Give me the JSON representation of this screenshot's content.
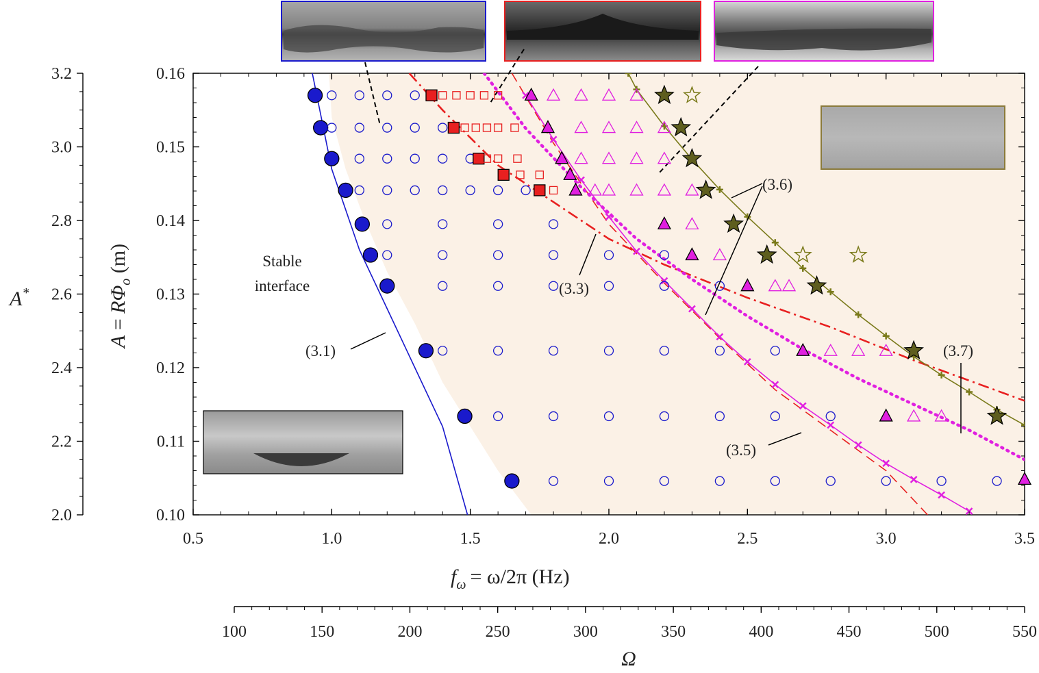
{
  "chart_data": {
    "type": "scatter",
    "title": "",
    "xlabel": "f_ω = ω/2π (Hz)",
    "xlabel_parts": {
      "symbol": "f",
      "sub": "ω",
      "rest": "= ω/2π  (Hz)"
    },
    "ylabel": "A = RΦo (m)",
    "ylabel_parts": {
      "lhs": "A",
      "eq": " = ",
      "R": "R",
      "Phi": "Φ",
      "sub": "o",
      "unit": " (m)"
    },
    "left_axis_label": "A*",
    "left_axis_label_parts": {
      "main": "A",
      "sup": "*"
    },
    "bottom_axis_label": "Ω",
    "xlim": [
      0.5,
      3.5
    ],
    "ylim": [
      0.1,
      0.16
    ],
    "x_ticks": [
      "0.5",
      "1.0",
      "1.5",
      "2.0",
      "2.5",
      "3.0",
      "3.5"
    ],
    "y_ticks": [
      "0.10",
      "0.11",
      "0.12",
      "0.13",
      "0.14",
      "0.15",
      "0.16"
    ],
    "left_axis_range": [
      2.0,
      3.2
    ],
    "left_axis_ticks": [
      "2.0",
      "2.2",
      "2.4",
      "2.6",
      "2.8",
      "3.0",
      "3.2"
    ],
    "bottom_axis_range": [
      100,
      550
    ],
    "bottom_axis_ticks": [
      "100",
      "150",
      "200",
      "250",
      "300",
      "350",
      "400",
      "450",
      "500",
      "550"
    ],
    "annotations": {
      "stable_line1": "Stable",
      "stable_line2": "interface",
      "eq31": "(3.1)",
      "eq33": "(3.3)",
      "eq35": "(3.5)",
      "eq36": "(3.6)",
      "eq37": "(3.7)"
    },
    "colors": {
      "blue": "#1a1acc",
      "red": "#e82020",
      "magenta": "#e020e0",
      "olive": "#7a7a1a",
      "olive_fill": "#5e5e1e",
      "region": "#fbf1e6"
    },
    "series": [
      {
        "marker": "circle-filled",
        "color": "#1a1acc",
        "points": [
          [
            0.94,
            0.157
          ],
          [
            0.96,
            0.1526
          ],
          [
            1.0,
            0.1484
          ],
          [
            1.05,
            0.1441
          ],
          [
            1.11,
            0.1395
          ],
          [
            1.14,
            0.1353
          ],
          [
            1.2,
            0.1311
          ],
          [
            1.34,
            0.1223
          ],
          [
            1.48,
            0.1134
          ],
          [
            1.65,
            0.1046
          ]
        ]
      },
      {
        "marker": "circle-open",
        "color": "#1a1acc",
        "points": [
          [
            1.0,
            0.157
          ],
          [
            1.1,
            0.157
          ],
          [
            1.2,
            0.157
          ],
          [
            1.3,
            0.157
          ],
          [
            1.0,
            0.1526
          ],
          [
            1.1,
            0.1526
          ],
          [
            1.2,
            0.1526
          ],
          [
            1.3,
            0.1526
          ],
          [
            1.4,
            0.1526
          ],
          [
            1.1,
            0.1484
          ],
          [
            1.2,
            0.1484
          ],
          [
            1.3,
            0.1484
          ],
          [
            1.4,
            0.1484
          ],
          [
            1.5,
            0.1484
          ],
          [
            1.1,
            0.1441
          ],
          [
            1.2,
            0.1441
          ],
          [
            1.3,
            0.1441
          ],
          [
            1.4,
            0.1441
          ],
          [
            1.5,
            0.1441
          ],
          [
            1.6,
            0.1441
          ],
          [
            1.7,
            0.1441
          ],
          [
            1.2,
            0.1395
          ],
          [
            1.4,
            0.1395
          ],
          [
            1.6,
            0.1395
          ],
          [
            1.8,
            0.1395
          ],
          [
            1.2,
            0.1353
          ],
          [
            1.4,
            0.1353
          ],
          [
            1.6,
            0.1353
          ],
          [
            1.8,
            0.1353
          ],
          [
            2.0,
            0.1353
          ],
          [
            2.2,
            0.1353
          ],
          [
            1.4,
            0.1311
          ],
          [
            1.6,
            0.1311
          ],
          [
            1.8,
            0.1311
          ],
          [
            2.0,
            0.1311
          ],
          [
            2.2,
            0.1311
          ],
          [
            2.4,
            0.1311
          ],
          [
            1.4,
            0.1223
          ],
          [
            1.6,
            0.1223
          ],
          [
            1.8,
            0.1223
          ],
          [
            2.0,
            0.1223
          ],
          [
            2.2,
            0.1223
          ],
          [
            2.4,
            0.1223
          ],
          [
            2.6,
            0.1223
          ],
          [
            1.6,
            0.1134
          ],
          [
            1.8,
            0.1134
          ],
          [
            2.0,
            0.1134
          ],
          [
            2.2,
            0.1134
          ],
          [
            2.4,
            0.1134
          ],
          [
            2.6,
            0.1134
          ],
          [
            2.8,
            0.1134
          ],
          [
            1.8,
            0.1046
          ],
          [
            2.0,
            0.1046
          ],
          [
            2.2,
            0.1046
          ],
          [
            2.4,
            0.1046
          ],
          [
            2.6,
            0.1046
          ],
          [
            2.8,
            0.1046
          ],
          [
            3.0,
            0.1046
          ],
          [
            3.2,
            0.1046
          ],
          [
            3.4,
            0.1046
          ]
        ]
      },
      {
        "marker": "square-filled",
        "color": "#e82020",
        "points": [
          [
            1.36,
            0.157
          ],
          [
            1.44,
            0.1526
          ],
          [
            1.53,
            0.1484
          ],
          [
            1.62,
            0.1462
          ],
          [
            1.75,
            0.1441
          ]
        ]
      },
      {
        "marker": "square-open",
        "color": "#e82020",
        "points": [
          [
            1.4,
            0.157
          ],
          [
            1.45,
            0.157
          ],
          [
            1.5,
            0.157
          ],
          [
            1.55,
            0.157
          ],
          [
            1.6,
            0.157
          ],
          [
            1.48,
            0.1526
          ],
          [
            1.52,
            0.1526
          ],
          [
            1.56,
            0.1526
          ],
          [
            1.6,
            0.1526
          ],
          [
            1.66,
            0.1526
          ],
          [
            1.56,
            0.1484
          ],
          [
            1.6,
            0.1484
          ],
          [
            1.67,
            0.1484
          ],
          [
            1.68,
            0.1462
          ],
          [
            1.75,
            0.1462
          ],
          [
            1.8,
            0.1441
          ]
        ]
      },
      {
        "marker": "triangle-filled",
        "color": "#e020e0",
        "points": [
          [
            1.72,
            0.157
          ],
          [
            1.78,
            0.1526
          ],
          [
            1.83,
            0.1484
          ],
          [
            1.86,
            0.1462
          ],
          [
            1.88,
            0.1441
          ],
          [
            2.2,
            0.1395
          ],
          [
            2.3,
            0.1353
          ],
          [
            2.5,
            0.1311
          ],
          [
            2.7,
            0.1223
          ],
          [
            3.0,
            0.1134
          ],
          [
            3.5,
            0.1048
          ]
        ]
      },
      {
        "marker": "triangle-open",
        "color": "#e020e0",
        "points": [
          [
            1.8,
            0.157
          ],
          [
            1.9,
            0.157
          ],
          [
            2.0,
            0.157
          ],
          [
            2.1,
            0.157
          ],
          [
            1.9,
            0.1526
          ],
          [
            2.0,
            0.1526
          ],
          [
            2.1,
            0.1526
          ],
          [
            2.2,
            0.1526
          ],
          [
            1.9,
            0.1484
          ],
          [
            2.0,
            0.1484
          ],
          [
            2.1,
            0.1484
          ],
          [
            2.2,
            0.1484
          ],
          [
            1.95,
            0.1441
          ],
          [
            2.0,
            0.1441
          ],
          [
            2.1,
            0.1441
          ],
          [
            2.2,
            0.1441
          ],
          [
            2.3,
            0.1441
          ],
          [
            2.3,
            0.1395
          ],
          [
            2.4,
            0.1353
          ],
          [
            2.6,
            0.1311
          ],
          [
            2.65,
            0.1311
          ],
          [
            2.8,
            0.1223
          ],
          [
            2.9,
            0.1223
          ],
          [
            3.0,
            0.1223
          ],
          [
            3.1,
            0.1134
          ],
          [
            3.2,
            0.1134
          ]
        ]
      },
      {
        "marker": "star-filled",
        "color": "#5e5e1e",
        "points": [
          [
            2.2,
            0.157
          ],
          [
            2.26,
            0.1526
          ],
          [
            2.3,
            0.1484
          ],
          [
            2.35,
            0.1441
          ],
          [
            2.45,
            0.1395
          ],
          [
            2.57,
            0.1353
          ],
          [
            2.75,
            0.1311
          ],
          [
            3.1,
            0.1223
          ],
          [
            3.4,
            0.1134
          ]
        ]
      },
      {
        "marker": "star-open",
        "color": "#7a7a1a",
        "points": [
          [
            2.3,
            0.157
          ],
          [
            2.7,
            0.1353
          ],
          [
            2.9,
            0.1353
          ]
        ]
      }
    ],
    "curves": [
      {
        "label": "(3.1)",
        "color": "#1a1acc",
        "style": "solid",
        "points": [
          [
            0.93,
            0.16
          ],
          [
            1.0,
            0.147
          ],
          [
            1.1,
            0.136
          ],
          [
            1.2,
            0.128
          ],
          [
            1.3,
            0.12
          ],
          [
            1.4,
            0.112
          ],
          [
            1.49,
            0.1
          ]
        ]
      },
      {
        "label": "(3.3)",
        "color": "#e82020",
        "style": "dash-dot",
        "points": [
          [
            1.28,
            0.16
          ],
          [
            1.4,
            0.155
          ],
          [
            1.6,
            0.1475
          ],
          [
            1.8,
            0.1425
          ],
          [
            2.0,
            0.1375
          ],
          [
            2.2,
            0.134
          ],
          [
            2.5,
            0.1295
          ],
          [
            2.8,
            0.1255
          ],
          [
            3.1,
            0.121
          ],
          [
            3.5,
            0.1155
          ]
        ]
      },
      {
        "label": "(3.5)",
        "color": "#e82020",
        "style": "dashed",
        "points": [
          [
            1.65,
            0.16
          ],
          [
            1.8,
            0.1505
          ],
          [
            2.0,
            0.1395
          ],
          [
            2.2,
            0.1315
          ],
          [
            2.4,
            0.124
          ],
          [
            2.6,
            0.117
          ],
          [
            2.8,
            0.1115
          ],
          [
            3.0,
            0.106
          ],
          [
            3.15,
            0.1
          ]
        ]
      },
      {
        "label": "(3.5)",
        "color": "#e020e0",
        "style": "solid-x",
        "points": [
          [
            1.7,
            0.157
          ],
          [
            1.8,
            0.151
          ],
          [
            1.9,
            0.1455
          ],
          [
            2.0,
            0.1405
          ],
          [
            2.1,
            0.1358
          ],
          [
            2.2,
            0.1318
          ],
          [
            2.3,
            0.128
          ],
          [
            2.4,
            0.1242
          ],
          [
            2.5,
            0.1208
          ],
          [
            2.6,
            0.1177
          ],
          [
            2.7,
            0.1148
          ],
          [
            2.8,
            0.1122
          ],
          [
            2.9,
            0.1095
          ],
          [
            3.0,
            0.107
          ],
          [
            3.1,
            0.1048
          ],
          [
            3.2,
            0.1027
          ],
          [
            3.3,
            0.1005
          ]
        ]
      },
      {
        "label": "(3.6)",
        "color": "#e020e0",
        "style": "dotted",
        "points": [
          [
            1.55,
            0.16
          ],
          [
            1.7,
            0.1525
          ],
          [
            1.9,
            0.1445
          ],
          [
            2.1,
            0.1375
          ],
          [
            2.3,
            0.132
          ],
          [
            2.5,
            0.127
          ],
          [
            2.7,
            0.1225
          ],
          [
            2.9,
            0.1185
          ],
          [
            3.1,
            0.115
          ],
          [
            3.3,
            0.1115
          ],
          [
            3.5,
            0.1075
          ]
        ]
      },
      {
        "label": "(3.6)",
        "color": "#7a7a1a",
        "style": "solid-plus",
        "points": [
          [
            2.07,
            0.16
          ],
          [
            2.1,
            0.1578
          ],
          [
            2.2,
            0.1528
          ],
          [
            2.3,
            0.1483
          ],
          [
            2.4,
            0.1442
          ],
          [
            2.5,
            0.1405
          ],
          [
            2.6,
            0.137
          ],
          [
            2.7,
            0.1335
          ],
          [
            2.8,
            0.1303
          ],
          [
            2.9,
            0.1272
          ],
          [
            3.0,
            0.1243
          ],
          [
            3.1,
            0.1215
          ],
          [
            3.2,
            0.119
          ],
          [
            3.3,
            0.1167
          ],
          [
            3.4,
            0.1143
          ],
          [
            3.5,
            0.1122
          ]
        ]
      }
    ]
  }
}
